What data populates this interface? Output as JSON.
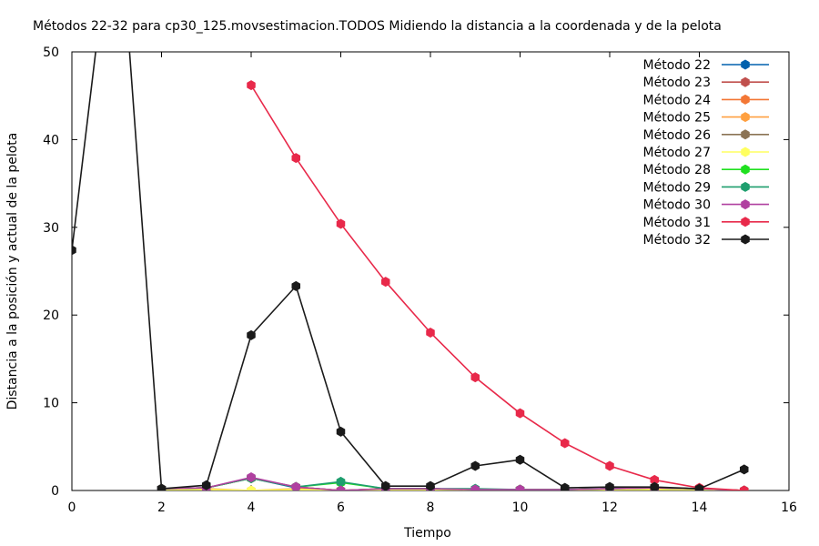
{
  "chart_data": {
    "type": "line",
    "title": "Métodos 22-32 para cp30_125.movsestimacion.TODOS Midiendo la distancia a la coordenada y de la pelota",
    "xlabel": "Tiempo",
    "ylabel": "Distancia a la posición y actual de la pelota",
    "xlim": [
      0,
      16
    ],
    "ylim": [
      0,
      50
    ],
    "xticks": [
      "0",
      "2",
      "4",
      "6",
      "8",
      "10",
      "12",
      "14",
      "16"
    ],
    "yticks": [
      "0",
      "10",
      "20",
      "30",
      "40",
      "50"
    ],
    "xtick_values": [
      0,
      2,
      4,
      6,
      8,
      10,
      12,
      14,
      16
    ],
    "ytick_values": [
      0,
      10,
      20,
      30,
      40,
      50
    ],
    "legend_position": "top-right",
    "grid": false,
    "x": [
      0,
      1,
      2,
      3,
      4,
      5,
      6,
      7,
      8,
      9,
      10,
      11,
      12,
      13,
      14,
      15
    ],
    "series": [
      {
        "name": "Método 22",
        "color": "#0060ad",
        "values": [
          null,
          null,
          0.2,
          0.3,
          1.4,
          0.3,
          0.0,
          0.2,
          0.2,
          0.1,
          0.1,
          0.1,
          0.2,
          0.3,
          0.2,
          0.0
        ]
      },
      {
        "name": "Método 23",
        "color": "#c0504d",
        "values": [
          null,
          null,
          0.2,
          0.3,
          1.4,
          0.4,
          0.0,
          0.2,
          0.2,
          0.1,
          0.1,
          0.1,
          0.2,
          0.3,
          0.2,
          0.0
        ]
      },
      {
        "name": "Método 24",
        "color": "#f37735",
        "values": [
          null,
          null,
          0.2,
          0.3,
          1.4,
          0.4,
          0.0,
          0.2,
          0.2,
          0.1,
          0.1,
          0.1,
          0.2,
          0.3,
          0.2,
          0.0
        ]
      },
      {
        "name": "Método 25",
        "color": "#ffa040",
        "values": [
          null,
          null,
          0.2,
          0.2,
          0.0,
          0.2,
          0.0,
          0.1,
          0.1,
          0.1,
          0.1,
          0.1,
          0.1,
          0.2,
          0.2,
          0.0
        ]
      },
      {
        "name": "Método 26",
        "color": "#8b7355",
        "values": [
          null,
          null,
          0.2,
          0.3,
          1.4,
          0.4,
          0.0,
          0.2,
          0.2,
          0.1,
          0.1,
          0.1,
          0.2,
          0.3,
          0.2,
          0.0
        ]
      },
      {
        "name": "Método 27",
        "color": "#ffff60",
        "values": [
          null,
          null,
          0.1,
          0.1,
          0.0,
          0.1,
          0.0,
          0.1,
          0.1,
          0.1,
          0.1,
          0.1,
          0.1,
          0.1,
          0.1,
          0.0
        ]
      },
      {
        "name": "Método 28",
        "color": "#20e020",
        "values": [
          null,
          null,
          0.2,
          0.3,
          1.4,
          0.4,
          0.9,
          0.2,
          0.2,
          0.1,
          0.1,
          0.1,
          0.2,
          0.3,
          0.2,
          0.0
        ]
      },
      {
        "name": "Método 29",
        "color": "#1e9e6e",
        "values": [
          null,
          null,
          0.2,
          0.3,
          1.4,
          0.4,
          1.0,
          0.2,
          0.2,
          0.2,
          0.1,
          0.1,
          0.2,
          0.3,
          0.2,
          0.0
        ]
      },
      {
        "name": "Método 30",
        "color": "#b040a0",
        "values": [
          null,
          null,
          0.2,
          0.3,
          1.5,
          0.4,
          0.0,
          0.2,
          0.2,
          0.1,
          0.1,
          0.1,
          0.2,
          0.3,
          0.2,
          0.0
        ]
      },
      {
        "name": "Método 31",
        "color": "#e8294a",
        "values": [
          null,
          null,
          null,
          null,
          46.2,
          37.9,
          30.4,
          23.8,
          18.0,
          12.9,
          8.8,
          5.4,
          2.8,
          1.2,
          0.3,
          0.0
        ]
      },
      {
        "name": "Método 32",
        "color": "#1a1a1a",
        "values": [
          27.4,
          70.0,
          0.2,
          0.6,
          17.7,
          23.3,
          6.7,
          0.5,
          0.5,
          2.8,
          3.5,
          0.3,
          0.4,
          0.4,
          0.2,
          2.4
        ]
      }
    ]
  }
}
